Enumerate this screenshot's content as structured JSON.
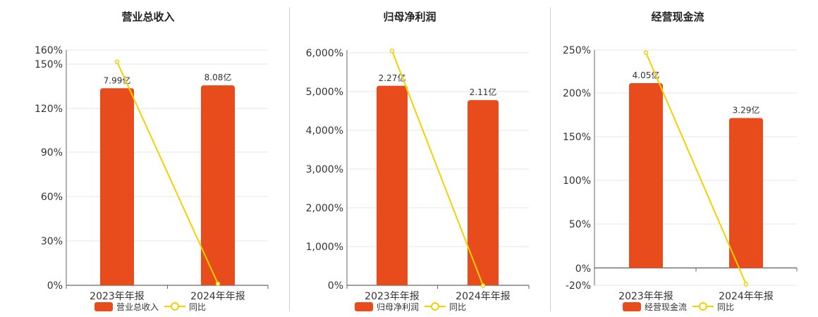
{
  "colors": {
    "bar": "#e84c1c",
    "line": "#f5d000",
    "grid": "#e6e6e6",
    "axis": "#666666"
  },
  "chart_data": [
    {
      "type": "bar",
      "title": "营业总收入",
      "categories": [
        "2023年年报",
        "2024年年报"
      ],
      "series": [
        {
          "name": "营业总收入",
          "type": "bar",
          "values": [
            7.99,
            8.08
          ],
          "labels": [
            "7.99亿",
            "8.08亿"
          ]
        },
        {
          "name": "同比",
          "type": "line",
          "values": [
            152,
            1.1
          ]
        }
      ],
      "y_ticks": [
        "0%",
        "30%",
        "60%",
        "90%",
        "120%",
        "150%",
        "160%"
      ],
      "ylim": [
        0,
        160
      ],
      "bar_pct": [
        134,
        136
      ],
      "legend": "bottom"
    },
    {
      "type": "bar",
      "title": "归母净利润",
      "categories": [
        "2023年年报",
        "2024年年报"
      ],
      "series": [
        {
          "name": "归母净利润",
          "type": "bar",
          "values": [
            2.27,
            2.11
          ],
          "labels": [
            "2.27亿",
            "2.11亿"
          ]
        },
        {
          "name": "同比",
          "type": "line",
          "values": [
            6050,
            -7
          ]
        }
      ],
      "y_ticks": [
        "0%",
        "1,000%",
        "2,000%",
        "3,000%",
        "4,000%",
        "5,000%",
        "6,000%"
      ],
      "ylim": [
        0,
        6000
      ],
      "bar_pct": [
        5150,
        4780
      ],
      "legend": "bottom"
    },
    {
      "type": "bar",
      "title": "经营现金流",
      "categories": [
        "2023年年报",
        "2024年年报"
      ],
      "series": [
        {
          "name": "经营现金流",
          "type": "bar",
          "values": [
            4.05,
            3.29
          ],
          "labels": [
            "4.05亿",
            "3.29亿"
          ]
        },
        {
          "name": "同比",
          "type": "line",
          "values": [
            247,
            -18.8
          ]
        }
      ],
      "y_ticks": [
        "-20%",
        "0%",
        "50%",
        "100%",
        "150%",
        "200%",
        "250%"
      ],
      "ylim": [
        -20,
        250
      ],
      "bar_pct": [
        212,
        172
      ],
      "legend": "bottom"
    }
  ]
}
